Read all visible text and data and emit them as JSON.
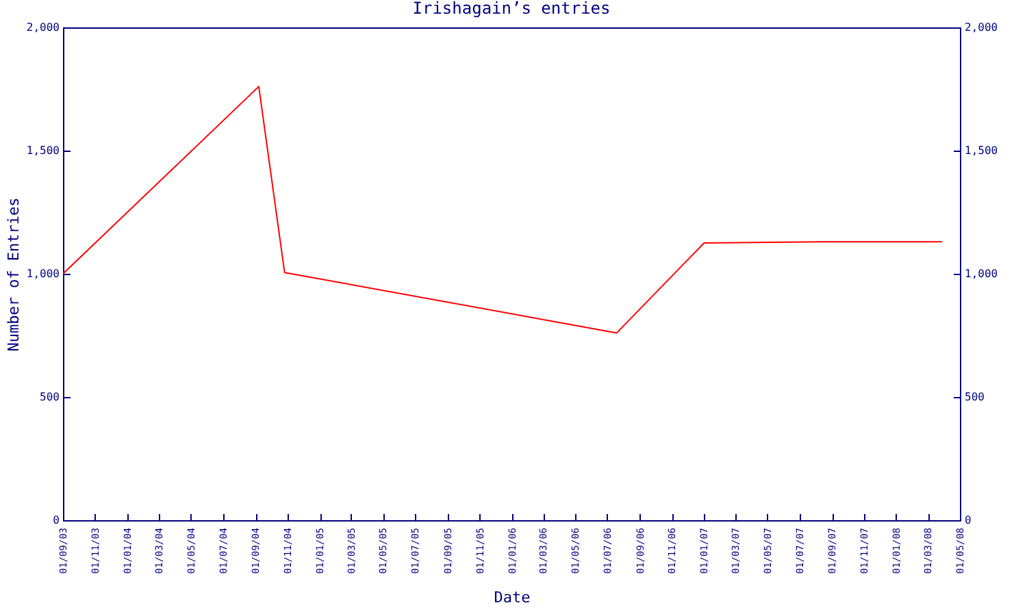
{
  "chart_data": {
    "type": "line",
    "title": "Irishagain’s entries",
    "xlabel": "Date",
    "ylabel": "Number of Entries",
    "x": [
      "2003-09-01",
      "2004-09-07",
      "2004-10-26",
      "2006-07-19",
      "2007-01-01",
      "2007-08-16",
      "2008-03-28"
    ],
    "series": [
      {
        "color": "#ff0000",
        "values": [
          1000,
          1760,
          1005,
          760,
          1125,
          1130,
          1130
        ]
      }
    ],
    "xlim": [
      "2003-09-01",
      "2008-05-01"
    ],
    "xticks": [
      {
        "value": "2003-09-01",
        "label": "01/09/03"
      },
      {
        "value": "2003-11-01",
        "label": "01/11/03"
      },
      {
        "value": "2004-01-01",
        "label": "01/01/04"
      },
      {
        "value": "2004-03-01",
        "label": "01/03/04"
      },
      {
        "value": "2004-05-01",
        "label": "01/05/04"
      },
      {
        "value": "2004-07-01",
        "label": "01/07/04"
      },
      {
        "value": "2004-09-01",
        "label": "01/09/04"
      },
      {
        "value": "2004-11-01",
        "label": "01/11/04"
      },
      {
        "value": "2005-01-01",
        "label": "01/01/05"
      },
      {
        "value": "2005-03-01",
        "label": "01/03/05"
      },
      {
        "value": "2005-05-01",
        "label": "01/05/05"
      },
      {
        "value": "2005-07-01",
        "label": "01/07/05"
      },
      {
        "value": "2005-09-01",
        "label": "01/09/05"
      },
      {
        "value": "2005-11-01",
        "label": "01/11/05"
      },
      {
        "value": "2006-01-01",
        "label": "01/01/06"
      },
      {
        "value": "2006-03-01",
        "label": "01/03/06"
      },
      {
        "value": "2006-05-01",
        "label": "01/05/06"
      },
      {
        "value": "2006-07-01",
        "label": "01/07/06"
      },
      {
        "value": "2006-09-01",
        "label": "01/09/06"
      },
      {
        "value": "2006-11-01",
        "label": "01/11/06"
      },
      {
        "value": "2007-01-01",
        "label": "01/01/07"
      },
      {
        "value": "2007-03-01",
        "label": "01/03/07"
      },
      {
        "value": "2007-05-01",
        "label": "01/05/07"
      },
      {
        "value": "2007-07-01",
        "label": "01/07/07"
      },
      {
        "value": "2007-09-01",
        "label": "01/09/07"
      },
      {
        "value": "2007-11-01",
        "label": "01/11/07"
      },
      {
        "value": "2008-01-01",
        "label": "01/01/08"
      },
      {
        "value": "2008-03-01",
        "label": "01/03/08"
      },
      {
        "value": "2008-05-01",
        "label": "01/05/08"
      }
    ],
    "ylim": [
      0,
      2000
    ],
    "yticks": [
      0,
      500,
      {
        "value": 1000,
        "label": "1,000"
      },
      {
        "value": 1500,
        "label": "1,500"
      },
      {
        "value": 2000,
        "label": "2,000"
      }
    ],
    "y2lim": [
      0,
      2000
    ],
    "y2ticks": [
      0,
      500,
      {
        "value": 1000,
        "label": "1,000"
      },
      {
        "value": 1500,
        "label": "1,500"
      },
      {
        "value": 2000,
        "label": "2,000"
      }
    ],
    "grid": false,
    "marker": "none",
    "line_style": "solid"
  }
}
